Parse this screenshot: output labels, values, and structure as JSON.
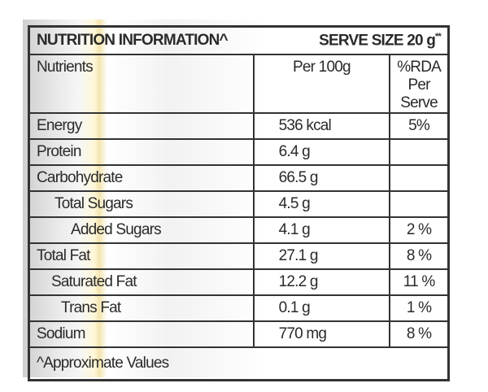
{
  "title": "NUTRITION INFORMATION^",
  "serve_size": "SERVE SIZE 20 g",
  "serve_size_mark": "**",
  "columns": [
    "Nutrients",
    "Per 100g",
    "%RDA",
    "Per Serve"
  ],
  "rows": [
    {
      "nutrient": "Energy",
      "per100": "536 kcal",
      "rda": "5%"
    },
    {
      "nutrient": "Protein",
      "per100": "6.4 g",
      "rda": ""
    },
    {
      "nutrient": "Carbohydrate",
      "per100": "66.5 g",
      "rda": ""
    },
    {
      "nutrient": "Total Sugars",
      "per100": "4.5 g",
      "rda": ""
    },
    {
      "nutrient": "Added Sugars",
      "per100": "4.1 g",
      "rda": "2 %"
    },
    {
      "nutrient": "Total Fat",
      "per100": "27.1 g",
      "rda": "8 %"
    },
    {
      "nutrient": "Saturated Fat",
      "per100": "12.2 g",
      "rda": "11 %"
    },
    {
      "nutrient": "Trans Fat",
      "per100": "0.1 g",
      "rda": "1 %"
    },
    {
      "nutrient": "Sodium",
      "per100": "770 mg",
      "rda": "8 %"
    }
  ],
  "footnote": "^Approximate Values"
}
